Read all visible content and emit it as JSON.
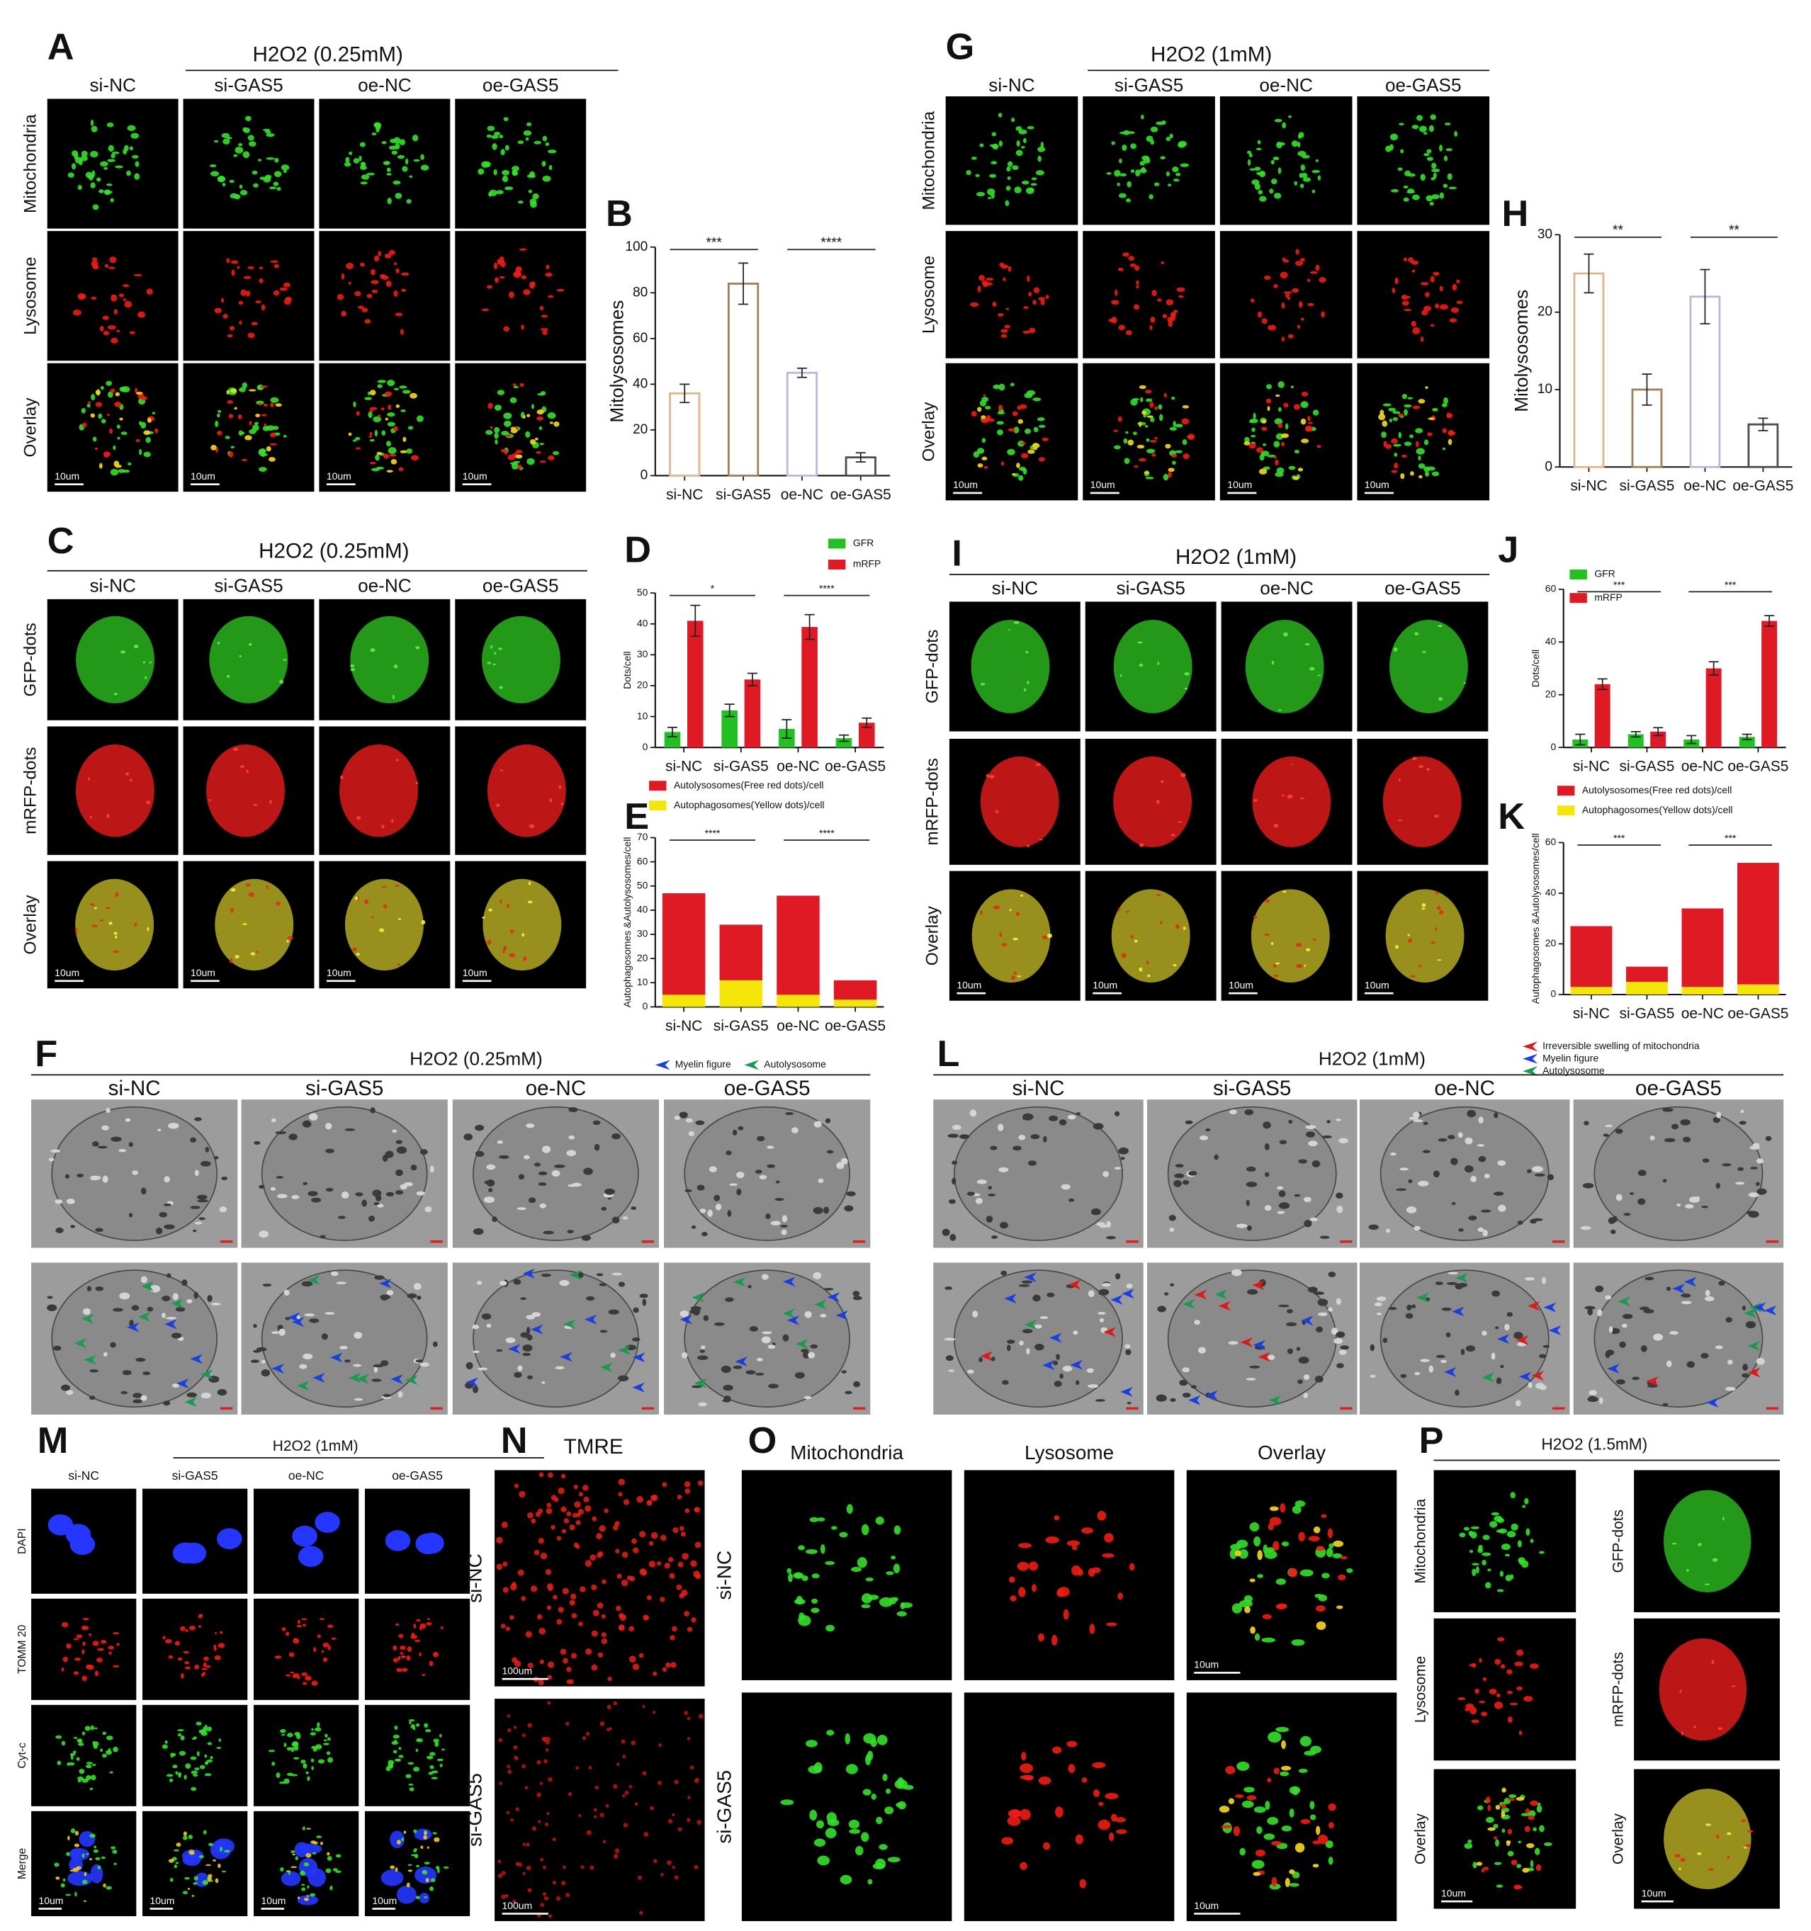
{
  "panels": {
    "A": {
      "letter": "A",
      "title": "H2O2 (0.25mM)",
      "columns": [
        "si-NC",
        "si-GAS5",
        "oe-NC",
        "oe-GAS5"
      ],
      "rows": [
        "Mitochondria",
        "Lysosome",
        "Overlay"
      ],
      "scale": "10um"
    },
    "B": {
      "letter": "B"
    },
    "C": {
      "letter": "C",
      "title": "H2O2 (0.25mM)",
      "columns": [
        "si-NC",
        "si-GAS5",
        "oe-NC",
        "oe-GAS5"
      ],
      "rows": [
        "GFP-dots",
        "mRFP-dots",
        "Overlay"
      ],
      "scale": "10um"
    },
    "D": {
      "letter": "D"
    },
    "E": {
      "letter": "E"
    },
    "F": {
      "letter": "F",
      "title": "H2O2 (0.25mM)",
      "legend": [
        {
          "label": "Myelin figure",
          "color": "#1a3fe0"
        },
        {
          "label": "Autolysosome",
          "color": "#1a9a50"
        }
      ],
      "columns": [
        "si-NC",
        "si-GAS5",
        "oe-NC",
        "oe-GAS5"
      ]
    },
    "G": {
      "letter": "G",
      "title": "H2O2 (1mM)",
      "columns": [
        "si-NC",
        "si-GAS5",
        "oe-NC",
        "oe-GAS5"
      ],
      "rows": [
        "Mitochondria",
        "Lysosome",
        "Overlay"
      ],
      "scale": "10um"
    },
    "H": {
      "letter": "H"
    },
    "I": {
      "letter": "I",
      "title": "H2O2 (1mM)",
      "columns": [
        "si-NC",
        "si-GAS5",
        "oe-NC",
        "oe-GAS5"
      ],
      "rows": [
        "GFP-dots",
        "mRFP-dots",
        "Overlay"
      ],
      "scale": "10um"
    },
    "J": {
      "letter": "J"
    },
    "K": {
      "letter": "K"
    },
    "L": {
      "letter": "L",
      "title": "H2O2 (1mM)",
      "legend": [
        {
          "label": "Irreversible swelling of mitochondria",
          "color": "#e01818"
        },
        {
          "label": "Myelin figure",
          "color": "#1a3fe0"
        },
        {
          "label": "Autolysosome",
          "color": "#1a9a50"
        }
      ],
      "columns": [
        "si-NC",
        "si-GAS5",
        "oe-NC",
        "oe-GAS5"
      ]
    },
    "M": {
      "letter": "M",
      "title": "H2O2 (1mM)",
      "columns": [
        "si-NC",
        "si-GAS5",
        "oe-NC",
        "oe-GAS5"
      ],
      "rows": [
        "DAPI",
        "TOMM 20",
        "Cyt-c",
        "Merge"
      ],
      "scale": "10um"
    },
    "N": {
      "letter": "N",
      "title": "TMRE",
      "rows": [
        "si-NC",
        "si-GAS5"
      ],
      "scale": "100um"
    },
    "O": {
      "letter": "O",
      "columns": [
        "Mitochondria",
        "Lysosome",
        "Overlay"
      ],
      "rows": [
        "si-NC",
        "si-GAS5"
      ],
      "scale": "10um"
    },
    "P": {
      "letter": "P",
      "title": "H2O2 (1.5mM)",
      "rows_left": [
        "Mitochondria",
        "Lysosome",
        "Overlay"
      ],
      "rows_right": [
        "GFP-dots",
        "mRFP-dots",
        "Overlay"
      ],
      "scale": "10um"
    }
  },
  "chart_data": [
    {
      "type": "bar",
      "style": "hollow",
      "ylabel": "Mitolysosomes",
      "categories": [
        "si-NC",
        "si-GAS5",
        "oe-NC",
        "oe-GAS5"
      ],
      "values": [
        36,
        84,
        45,
        8
      ],
      "errors": [
        4,
        9,
        2,
        2
      ],
      "colors": [
        "#e0b48c",
        "#a07d5a",
        "#b8b8d8",
        "#4a4a5a"
      ],
      "ylim": [
        0,
        100
      ],
      "yticks": [
        0,
        20,
        40,
        60,
        80,
        100
      ],
      "annotations": [
        {
          "text": "***",
          "between": [
            "si-NC",
            "si-GAS5"
          ]
        },
        {
          "text": "****",
          "between": [
            "oe-NC",
            "oe-GAS5"
          ]
        }
      ]
    },
    {
      "type": "bar",
      "ylabel": "Dots/cell",
      "legend": "upper right",
      "categories": [
        "si-NC",
        "si-GAS5",
        "oe-NC",
        "oe-GAS5"
      ],
      "series": [
        {
          "name": "GFR",
          "color": "#22c022",
          "values": [
            5,
            12,
            6,
            3
          ],
          "errors": [
            1.5,
            2,
            3,
            1
          ]
        },
        {
          "name": "mRFP",
          "color": "#e01a24",
          "values": [
            41,
            22,
            39,
            8
          ],
          "errors": [
            5,
            2,
            4,
            1.5
          ]
        }
      ],
      "ylim": [
        0,
        50
      ],
      "yticks": [
        0,
        10,
        20,
        30,
        40,
        50
      ],
      "annotations": [
        {
          "text": "*",
          "between": [
            "si-NC",
            "si-GAS5"
          ]
        },
        {
          "text": "****",
          "between": [
            "oe-NC",
            "oe-GAS5"
          ]
        }
      ]
    },
    {
      "type": "stacked_bar",
      "ylabel": "Autophagosomes &Autolysosomes/cell",
      "legend": "above",
      "categories": [
        "si-NC",
        "si-GAS5",
        "oe-NC",
        "oe-GAS5"
      ],
      "series": [
        {
          "name": "Autolysosomes(Free red dots)/cell",
          "color": "#e01a24",
          "values": [
            42,
            23,
            41,
            8
          ]
        },
        {
          "name": "Autophagosomes(Yellow dots)/cell",
          "color": "#f5e60a",
          "values": [
            5,
            11,
            5,
            3
          ]
        }
      ],
      "stack_order": "reverse",
      "ylim": [
        0,
        70
      ],
      "yticks": [
        0,
        10,
        20,
        30,
        40,
        50,
        60,
        70
      ],
      "annotations": [
        {
          "text": "****",
          "between": [
            "si-NC",
            "si-GAS5"
          ]
        },
        {
          "text": "****",
          "between": [
            "oe-NC",
            "oe-GAS5"
          ]
        }
      ]
    },
    {
      "type": "bar",
      "style": "hollow",
      "ylabel": "Mitolysosomes",
      "categories": [
        "si-NC",
        "si-GAS5",
        "oe-NC",
        "oe-GAS5"
      ],
      "values": [
        25,
        10,
        22,
        5.5
      ],
      "errors": [
        2.5,
        2,
        3.5,
        0.8
      ],
      "colors": [
        "#e0b48c",
        "#a07d5a",
        "#b8b8d8",
        "#4a4a5a"
      ],
      "ylim": [
        0,
        30
      ],
      "yticks": [
        0,
        10,
        20,
        30
      ],
      "annotations": [
        {
          "text": "**",
          "between": [
            "si-NC",
            "si-GAS5"
          ]
        },
        {
          "text": "**",
          "between": [
            "oe-NC",
            "oe-GAS5"
          ]
        }
      ]
    },
    {
      "type": "bar",
      "ylabel": "Dots/cell",
      "legend": "upper left",
      "categories": [
        "si-NC",
        "si-GAS5",
        "oe-NC",
        "oe-GAS5"
      ],
      "series": [
        {
          "name": "GFR",
          "color": "#22c022",
          "values": [
            3,
            5,
            3,
            4
          ],
          "errors": [
            2,
            1,
            1.5,
            1
          ]
        },
        {
          "name": "mRFP",
          "color": "#e01a24",
          "values": [
            24,
            6,
            30,
            48
          ],
          "errors": [
            2,
            1.5,
            2.5,
            2
          ]
        }
      ],
      "ylim": [
        0,
        60
      ],
      "yticks": [
        0,
        20,
        40,
        60
      ],
      "annotations": [
        {
          "text": "***",
          "between": [
            "si-NC",
            "si-GAS5"
          ]
        },
        {
          "text": "***",
          "between": [
            "oe-NC",
            "oe-GAS5"
          ]
        }
      ]
    },
    {
      "type": "stacked_bar",
      "ylabel": "Autophagosomes &Autolysosomes/cell",
      "legend": "above",
      "categories": [
        "si-NC",
        "si-GAS5",
        "oe-NC",
        "oe-GAS5"
      ],
      "series": [
        {
          "name": "Autolysosomes(Free red dots)/cell",
          "color": "#e01a24",
          "values": [
            24,
            6,
            31,
            48
          ]
        },
        {
          "name": "Autophagosomes(Yellow dots)/cell",
          "color": "#f5e60a",
          "values": [
            3,
            5,
            3,
            4
          ]
        }
      ],
      "stack_order": "reverse",
      "ylim": [
        0,
        60
      ],
      "yticks": [
        0,
        20,
        40,
        60
      ],
      "annotations": [
        {
          "text": "***",
          "between": [
            "si-NC",
            "si-GAS5"
          ]
        },
        {
          "text": "***",
          "between": [
            "oe-NC",
            "oe-GAS5"
          ]
        }
      ]
    }
  ]
}
